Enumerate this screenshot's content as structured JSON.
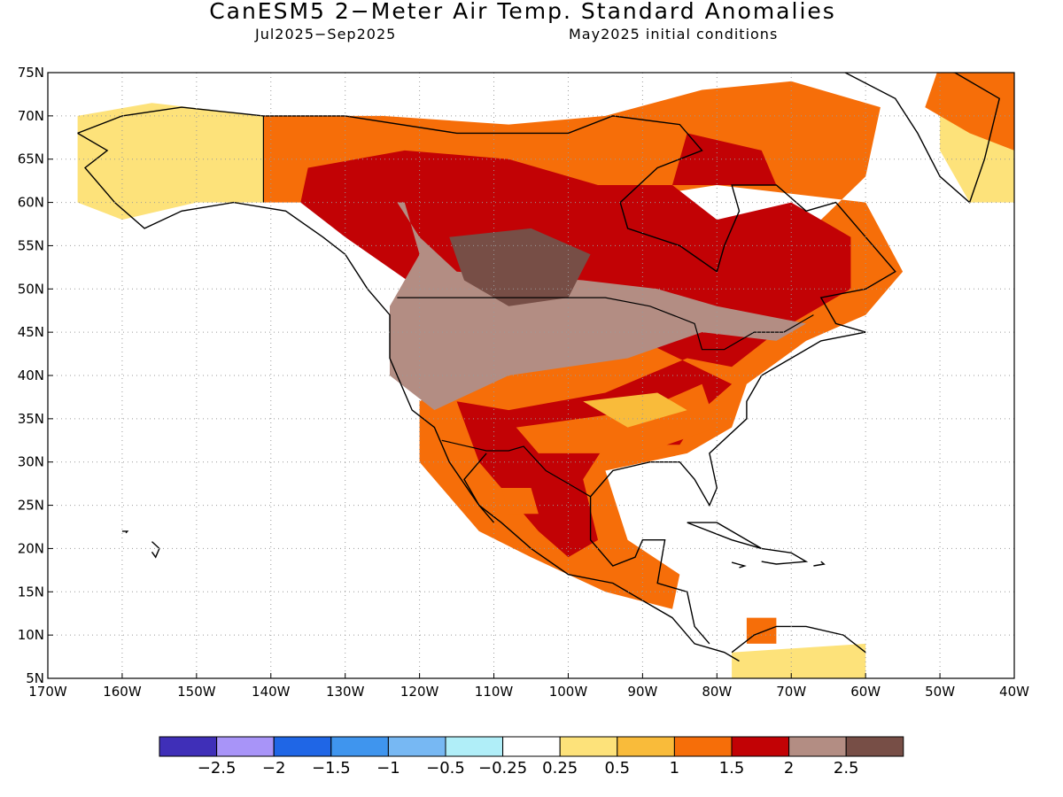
{
  "title": "CanESM5 2−Meter Air Temp. Standard Anomalies",
  "subtitle_left": "Jul2025−Sep2025",
  "subtitle_right": "May2025 initial conditions",
  "map": {
    "lon_range": [
      -170,
      -40
    ],
    "lat_range": [
      5,
      75
    ],
    "lon_tick_labels": [
      "170W",
      "160W",
      "150W",
      "140W",
      "130W",
      "120W",
      "110W",
      "100W",
      "90W",
      "80W",
      "70W",
      "60W",
      "50W",
      "40W"
    ],
    "lat_tick_labels": [
      "5N",
      "10N",
      "15N",
      "20N",
      "25N",
      "30N",
      "35N",
      "40N",
      "45N",
      "50N",
      "55N",
      "60N",
      "65N",
      "70N",
      "75N"
    ],
    "grid": "dotted"
  },
  "colorbar": {
    "colors": [
      "#3f2fb8",
      "#a894f8",
      "#1f66e6",
      "#3f95ee",
      "#77b8f3",
      "#b0eef8",
      "#ffffff",
      "#fde27a",
      "#f9bb3a",
      "#f66e09",
      "#c20205",
      "#b38d83",
      "#774e46"
    ],
    "labels": [
      "−2.5",
      "−2",
      "−1.5",
      "−1",
      "−0.5",
      "−0.25",
      "0.25",
      "0.5",
      "1",
      "1.5",
      "2",
      "2.5"
    ]
  }
}
